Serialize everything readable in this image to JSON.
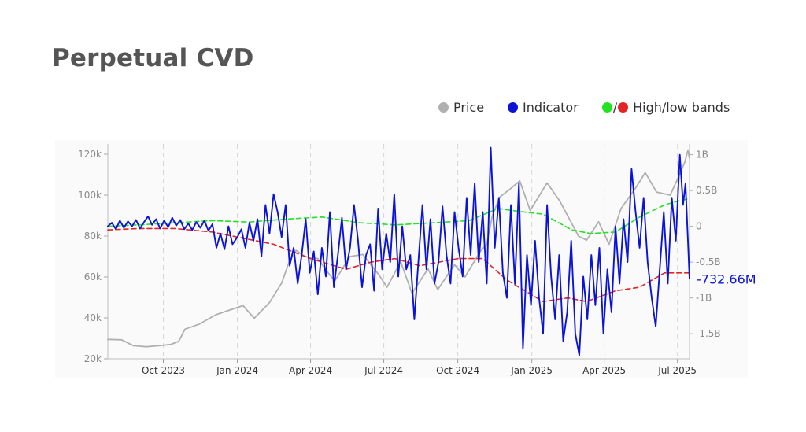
{
  "page": {
    "title": "Perpetual CVD"
  },
  "legend": {
    "price_label": "Price",
    "indicator_label": "Indicator",
    "bands_label": "High/low bands",
    "bands_separator": "/"
  },
  "colors": {
    "price": "#b0b0b0",
    "indicator": "#0b14d6",
    "high_band": "#22e222",
    "low_band": "#e32424",
    "axis_text": "#8a8a8a",
    "grid": "#d6d6d6"
  },
  "chart_data": {
    "type": "line",
    "title": "Perpetual CVD",
    "x_range": [
      "2023-07-24",
      "2025-07-16"
    ],
    "x_ticks": [
      "Oct 2023",
      "Jan 2024",
      "Apr 2024",
      "Jul 2024",
      "Oct 2024",
      "Jan 2025",
      "Apr 2025",
      "Jul 2025"
    ],
    "x_tick_dates": [
      "2023-10-01",
      "2024-01-01",
      "2024-04-01",
      "2024-07-01",
      "2024-10-01",
      "2025-01-01",
      "2025-04-01",
      "2025-07-01"
    ],
    "y_left": {
      "min": 20000,
      "max": 125000,
      "ticks": [
        20000,
        40000,
        60000,
        80000,
        100000,
        120000
      ],
      "tick_labels": [
        "20k",
        "40k",
        "60k",
        "80k",
        "100k",
        "120k"
      ]
    },
    "y_right": {
      "min": -1850000000,
      "max": 1150000000,
      "ticks": [
        -1500000000,
        -1000000000,
        -500000000,
        0,
        500000000,
        1000000000
      ],
      "tick_labels": [
        "-1.5B",
        "-1B",
        "-0.5B",
        "0",
        "0.5B",
        "1B"
      ]
    },
    "grid": "vertical dashed at x ticks",
    "legend_position": "top-right",
    "last_value_label": "-732.66M",
    "series": [
      {
        "name": "Price",
        "axis": "left",
        "points": [
          [
            "2023-07-24",
            29500
          ],
          [
            "2023-08-10",
            29300
          ],
          [
            "2023-08-25",
            26400
          ],
          [
            "2023-09-10",
            25900
          ],
          [
            "2023-09-25",
            26400
          ],
          [
            "2023-10-10",
            27000
          ],
          [
            "2023-10-20",
            28500
          ],
          [
            "2023-10-28",
            34500
          ],
          [
            "2023-11-15",
            37000
          ],
          [
            "2023-12-05",
            41500
          ],
          [
            "2023-12-20",
            43500
          ],
          [
            "2024-01-08",
            46000
          ],
          [
            "2024-01-22",
            39800
          ],
          [
            "2024-02-10",
            47500
          ],
          [
            "2024-02-25",
            57000
          ],
          [
            "2024-03-05",
            67000
          ],
          [
            "2024-03-14",
            73000
          ],
          [
            "2024-03-25",
            70000
          ],
          [
            "2024-04-10",
            69000
          ],
          [
            "2024-04-20",
            63500
          ],
          [
            "2024-05-01",
            58000
          ],
          [
            "2024-05-20",
            70000
          ],
          [
            "2024-06-05",
            71000
          ],
          [
            "2024-06-25",
            61000
          ],
          [
            "2024-07-05",
            55000
          ],
          [
            "2024-07-22",
            67500
          ],
          [
            "2024-08-05",
            52000
          ],
          [
            "2024-08-25",
            64000
          ],
          [
            "2024-09-06",
            53800
          ],
          [
            "2024-09-27",
            66000
          ],
          [
            "2024-10-10",
            60000
          ],
          [
            "2024-10-29",
            72500
          ],
          [
            "2024-11-06",
            76000
          ],
          [
            "2024-11-13",
            90000
          ],
          [
            "2024-11-22",
            99000
          ],
          [
            "2024-12-05",
            103000
          ],
          [
            "2024-12-17",
            107000
          ],
          [
            "2024-12-30",
            92500
          ],
          [
            "2025-01-20",
            106000
          ],
          [
            "2025-02-05",
            97000
          ],
          [
            "2025-02-28",
            80000
          ],
          [
            "2025-03-10",
            78000
          ],
          [
            "2025-03-25",
            87000
          ],
          [
            "2025-04-07",
            76000
          ],
          [
            "2025-04-22",
            93500
          ],
          [
            "2025-05-10",
            103500
          ],
          [
            "2025-05-22",
            111000
          ],
          [
            "2025-06-05",
            101500
          ],
          [
            "2025-06-22",
            100000
          ],
          [
            "2025-07-03",
            109500
          ],
          [
            "2025-07-10",
            116000
          ],
          [
            "2025-07-14",
            122000
          ],
          [
            "2025-07-16",
            118000
          ]
        ]
      },
      {
        "name": "Indicator",
        "axis": "right",
        "points": [
          [
            "2023-07-24",
            0
          ],
          [
            "2023-07-29",
            50000000
          ],
          [
            "2023-08-03",
            -40000000
          ],
          [
            "2023-08-08",
            80000000
          ],
          [
            "2023-08-13",
            -20000000
          ],
          [
            "2023-08-18",
            70000000
          ],
          [
            "2023-08-23",
            0
          ],
          [
            "2023-08-28",
            90000000
          ],
          [
            "2023-09-02",
            -30000000
          ],
          [
            "2023-09-07",
            60000000
          ],
          [
            "2023-09-12",
            140000000
          ],
          [
            "2023-09-17",
            20000000
          ],
          [
            "2023-09-22",
            100000000
          ],
          [
            "2023-09-27",
            -30000000
          ],
          [
            "2023-10-02",
            80000000
          ],
          [
            "2023-10-07",
            -10000000
          ],
          [
            "2023-10-12",
            120000000
          ],
          [
            "2023-10-17",
            10000000
          ],
          [
            "2023-10-22",
            90000000
          ],
          [
            "2023-10-27",
            -40000000
          ],
          [
            "2023-11-01",
            40000000
          ],
          [
            "2023-11-06",
            -50000000
          ],
          [
            "2023-11-11",
            60000000
          ],
          [
            "2023-11-16",
            -20000000
          ],
          [
            "2023-11-21",
            80000000
          ],
          [
            "2023-11-26",
            -60000000
          ],
          [
            "2023-12-01",
            30000000
          ],
          [
            "2023-12-06",
            -300000000
          ],
          [
            "2023-12-11",
            -100000000
          ],
          [
            "2023-12-16",
            -320000000
          ],
          [
            "2023-12-21",
            0
          ],
          [
            "2023-12-26",
            -250000000
          ],
          [
            "2024-01-01",
            -150000000
          ],
          [
            "2024-01-06",
            -40000000
          ],
          [
            "2024-01-11",
            -300000000
          ],
          [
            "2024-01-16",
            50000000
          ],
          [
            "2024-01-21",
            -200000000
          ],
          [
            "2024-01-26",
            100000000
          ],
          [
            "2024-01-31",
            -420000000
          ],
          [
            "2024-02-05",
            300000000
          ],
          [
            "2024-02-10",
            -100000000
          ],
          [
            "2024-02-15",
            450000000
          ],
          [
            "2024-02-20",
            200000000
          ],
          [
            "2024-02-25",
            -150000000
          ],
          [
            "2024-03-01",
            300000000
          ],
          [
            "2024-03-06",
            -550000000
          ],
          [
            "2024-03-11",
            -300000000
          ],
          [
            "2024-03-16",
            -800000000
          ],
          [
            "2024-03-21",
            -400000000
          ],
          [
            "2024-03-26",
            100000000
          ],
          [
            "2024-03-31",
            -650000000
          ],
          [
            "2024-04-05",
            -350000000
          ],
          [
            "2024-04-10",
            -950000000
          ],
          [
            "2024-04-15",
            -300000000
          ],
          [
            "2024-04-20",
            -700000000
          ],
          [
            "2024-04-25",
            200000000
          ],
          [
            "2024-04-30",
            -850000000
          ],
          [
            "2024-05-05",
            -400000000
          ],
          [
            "2024-05-10",
            120000000
          ],
          [
            "2024-05-15",
            -600000000
          ],
          [
            "2024-05-20",
            -300000000
          ],
          [
            "2024-05-25",
            300000000
          ],
          [
            "2024-05-30",
            -200000000
          ],
          [
            "2024-06-04",
            -850000000
          ],
          [
            "2024-06-09",
            -400000000
          ],
          [
            "2024-06-14",
            -250000000
          ],
          [
            "2024-06-19",
            -900000000
          ],
          [
            "2024-06-24",
            250000000
          ],
          [
            "2024-06-29",
            -600000000
          ],
          [
            "2024-07-04",
            -100000000
          ],
          [
            "2024-07-09",
            -500000000
          ],
          [
            "2024-07-14",
            450000000
          ],
          [
            "2024-07-19",
            -700000000
          ],
          [
            "2024-07-24",
            0
          ],
          [
            "2024-07-29",
            -600000000
          ],
          [
            "2024-08-03",
            -400000000
          ],
          [
            "2024-08-08",
            -1300000000
          ],
          [
            "2024-08-13",
            -500000000
          ],
          [
            "2024-08-18",
            300000000
          ],
          [
            "2024-08-23",
            -600000000
          ],
          [
            "2024-08-28",
            100000000
          ],
          [
            "2024-09-02",
            -800000000
          ],
          [
            "2024-09-07",
            -500000000
          ],
          [
            "2024-09-12",
            280000000
          ],
          [
            "2024-09-17",
            -400000000
          ],
          [
            "2024-09-22",
            -800000000
          ],
          [
            "2024-09-27",
            200000000
          ],
          [
            "2024-10-02",
            -300000000
          ],
          [
            "2024-10-07",
            -700000000
          ],
          [
            "2024-10-12",
            400000000
          ],
          [
            "2024-10-17",
            -400000000
          ],
          [
            "2024-10-22",
            600000000
          ],
          [
            "2024-10-27",
            -500000000
          ],
          [
            "2024-11-01",
            200000000
          ],
          [
            "2024-11-06",
            -800000000
          ],
          [
            "2024-11-11",
            1100000000
          ],
          [
            "2024-11-16",
            -300000000
          ],
          [
            "2024-11-21",
            400000000
          ],
          [
            "2024-11-26",
            -650000000
          ],
          [
            "2024-12-01",
            -1000000000
          ],
          [
            "2024-12-06",
            300000000
          ],
          [
            "2024-12-11",
            -800000000
          ],
          [
            "2024-12-16",
            600000000
          ],
          [
            "2024-12-21",
            -1700000000
          ],
          [
            "2024-12-26",
            -400000000
          ],
          [
            "2024-12-31",
            -1100000000
          ],
          [
            "2025-01-05",
            -200000000
          ],
          [
            "2025-01-10",
            -1000000000
          ],
          [
            "2025-01-15",
            -1500000000
          ],
          [
            "2025-01-20",
            300000000
          ],
          [
            "2025-01-25",
            -700000000
          ],
          [
            "2025-01-30",
            -1300000000
          ],
          [
            "2025-02-04",
            -400000000
          ],
          [
            "2025-02-09",
            -1600000000
          ],
          [
            "2025-02-14",
            -1200000000
          ],
          [
            "2025-02-19",
            -200000000
          ],
          [
            "2025-02-24",
            -1500000000
          ],
          [
            "2025-03-01",
            -1800000000
          ],
          [
            "2025-03-06",
            -700000000
          ],
          [
            "2025-03-11",
            -1300000000
          ],
          [
            "2025-03-16",
            -400000000
          ],
          [
            "2025-03-21",
            -1100000000
          ],
          [
            "2025-03-26",
            -300000000
          ],
          [
            "2025-03-31",
            -1500000000
          ],
          [
            "2025-04-05",
            -600000000
          ],
          [
            "2025-04-10",
            -1200000000
          ],
          [
            "2025-04-15",
            0
          ],
          [
            "2025-04-20",
            -800000000
          ],
          [
            "2025-04-25",
            100000000
          ],
          [
            "2025-04-30",
            -500000000
          ],
          [
            "2025-05-05",
            800000000
          ],
          [
            "2025-05-10",
            200000000
          ],
          [
            "2025-05-15",
            -300000000
          ],
          [
            "2025-05-20",
            400000000
          ],
          [
            "2025-05-25",
            -500000000
          ],
          [
            "2025-05-30",
            -1000000000
          ],
          [
            "2025-06-04",
            -1400000000
          ],
          [
            "2025-06-09",
            -600000000
          ],
          [
            "2025-06-14",
            200000000
          ],
          [
            "2025-06-19",
            -800000000
          ],
          [
            "2025-06-24",
            400000000
          ],
          [
            "2025-06-29",
            -200000000
          ],
          [
            "2025-07-04",
            1000000000
          ],
          [
            "2025-07-08",
            300000000
          ],
          [
            "2025-07-11",
            600000000
          ],
          [
            "2025-07-14",
            -200000000
          ],
          [
            "2025-07-16",
            -732660000
          ]
        ]
      },
      {
        "name": "High band",
        "axis": "right",
        "points": [
          [
            "2023-07-24",
            0
          ],
          [
            "2023-09-01",
            20000000
          ],
          [
            "2023-10-15",
            50000000
          ],
          [
            "2023-12-01",
            80000000
          ],
          [
            "2024-01-15",
            60000000
          ],
          [
            "2024-03-01",
            100000000
          ],
          [
            "2024-04-15",
            130000000
          ],
          [
            "2024-06-01",
            50000000
          ],
          [
            "2024-07-15",
            20000000
          ],
          [
            "2024-09-01",
            50000000
          ],
          [
            "2024-10-15",
            80000000
          ],
          [
            "2024-11-20",
            250000000
          ],
          [
            "2024-12-15",
            210000000
          ],
          [
            "2025-01-15",
            170000000
          ],
          [
            "2025-02-20",
            -50000000
          ],
          [
            "2025-03-15",
            -100000000
          ],
          [
            "2025-04-15",
            -80000000
          ],
          [
            "2025-05-15",
            130000000
          ],
          [
            "2025-06-15",
            300000000
          ],
          [
            "2025-07-01",
            350000000
          ],
          [
            "2025-07-16",
            390000000
          ]
        ]
      },
      {
        "name": "Low band",
        "axis": "right",
        "points": [
          [
            "2023-07-24",
            -50000000
          ],
          [
            "2023-09-01",
            -30000000
          ],
          [
            "2023-10-15",
            -30000000
          ],
          [
            "2023-12-01",
            -80000000
          ],
          [
            "2024-01-01",
            -150000000
          ],
          [
            "2024-02-15",
            -250000000
          ],
          [
            "2024-04-01",
            -450000000
          ],
          [
            "2024-05-15",
            -600000000
          ],
          [
            "2024-06-15",
            -500000000
          ],
          [
            "2024-07-15",
            -450000000
          ],
          [
            "2024-08-15",
            -550000000
          ],
          [
            "2024-10-01",
            -450000000
          ],
          [
            "2024-11-01",
            -450000000
          ],
          [
            "2024-12-01",
            -750000000
          ],
          [
            "2025-01-15",
            -1050000000
          ],
          [
            "2025-02-15",
            -1000000000
          ],
          [
            "2025-03-10",
            -1050000000
          ],
          [
            "2025-04-15",
            -900000000
          ],
          [
            "2025-05-15",
            -850000000
          ],
          [
            "2025-06-15",
            -650000000
          ],
          [
            "2025-07-16",
            -650000000
          ]
        ]
      }
    ]
  }
}
